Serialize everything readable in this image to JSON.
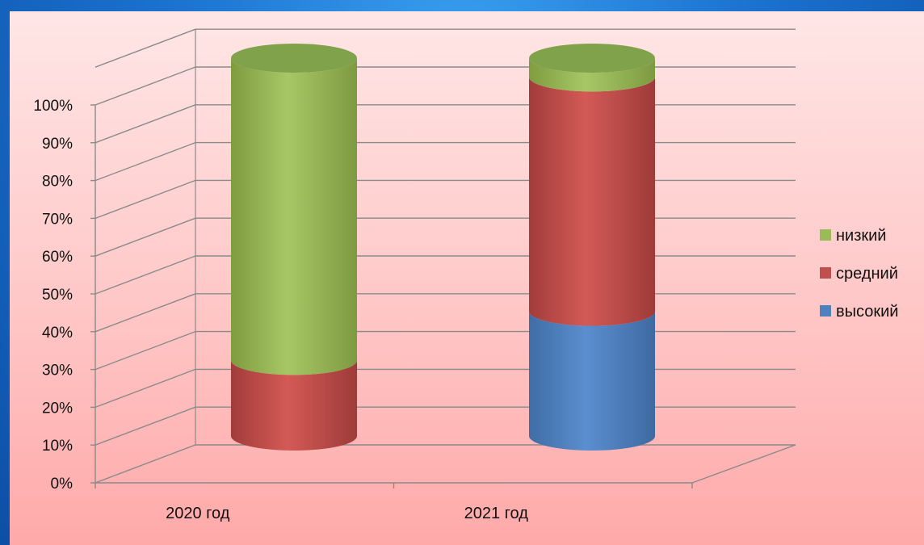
{
  "chart_data": {
    "type": "bar",
    "stacked": true,
    "style": "3d-cylinder",
    "categories": [
      "2020 год",
      "2021 год"
    ],
    "series": [
      {
        "name": "высокий",
        "values": [
          0,
          33
        ],
        "color": "#4f81bd"
      },
      {
        "name": "средний",
        "values": [
          20,
          62
        ],
        "color": "#c0504d"
      },
      {
        "name": "низкий",
        "values": [
          80,
          5
        ],
        "color": "#9bbb59"
      }
    ],
    "ylim": [
      0,
      100
    ],
    "yticks": [
      "0%",
      "10%",
      "20%",
      "30%",
      "40%",
      "50%",
      "60%",
      "70%",
      "80%",
      "90%",
      "100%"
    ],
    "grid": true,
    "legend": "right"
  }
}
